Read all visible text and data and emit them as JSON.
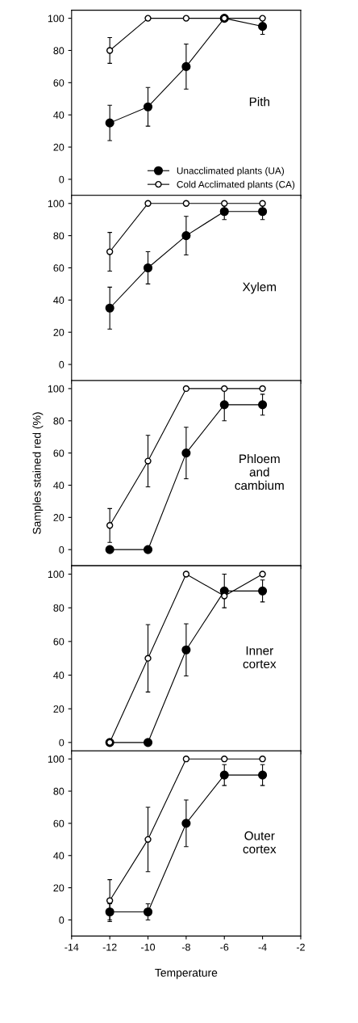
{
  "chart_data": [
    {
      "type": "line",
      "x": [
        -12,
        -10,
        -8,
        -6,
        -4
      ],
      "xlim": [
        -14,
        -2
      ],
      "xticks": [
        -14,
        -12,
        -10,
        -8,
        -6,
        -4,
        -2
      ],
      "ylim": [
        -10,
        105
      ],
      "yticks": [
        0,
        20,
        40,
        60,
        80,
        100
      ],
      "tick_labels": "y",
      "marker": "circle",
      "legend": "bottom right",
      "annotations": [
        "Pith"
      ],
      "series": [
        {
          "name": "Unacclimated plants (UA)",
          "color": "#000000",
          "values": [
            35,
            45,
            70,
            100,
            95
          ],
          "errors": [
            11,
            12,
            14,
            null,
            5
          ]
        },
        {
          "name": "Cold Acclimated plants (CA)",
          "color": "#ffffff",
          "values": [
            80,
            100,
            100,
            100,
            100
          ],
          "errors": [
            8,
            null,
            null,
            null,
            null
          ]
        }
      ]
    },
    {
      "type": "line",
      "x": [
        -12,
        -10,
        -8,
        -6,
        -4
      ],
      "xlim": [
        -14,
        -2
      ],
      "xticks": [
        -14,
        -12,
        -10,
        -8,
        -6,
        -4,
        -2
      ],
      "ylim": [
        -10,
        105
      ],
      "yticks": [
        0,
        20,
        40,
        60,
        80,
        100
      ],
      "tick_labels": "y",
      "marker": "circle",
      "annotations": [
        "Xylem"
      ],
      "series": [
        {
          "color": "#000000",
          "values": [
            35,
            60,
            80,
            95,
            95
          ],
          "errors": [
            13,
            10,
            12,
            5,
            5
          ]
        },
        {
          "color": "#ffffff",
          "values": [
            70,
            100,
            100,
            100,
            100
          ],
          "errors": [
            12,
            null,
            null,
            null,
            null
          ]
        }
      ]
    },
    {
      "type": "line",
      "x": [
        -12,
        -10,
        -8,
        -6,
        -4
      ],
      "xlim": [
        -14,
        -2
      ],
      "xticks": [
        -14,
        -12,
        -10,
        -8,
        -6,
        -4,
        -2
      ],
      "ylim": [
        -10,
        105
      ],
      "yticks": [
        0,
        20,
        40,
        60,
        80,
        100
      ],
      "tick_labels": "y",
      "marker": "circle",
      "ylabel": "Samples stained red (%)",
      "annotations": [
        "Phloem\nand\ncambium"
      ],
      "series": [
        {
          "color": "#000000",
          "values": [
            0,
            0,
            60,
            90,
            90
          ],
          "errors": [
            null,
            null,
            16,
            10,
            6.5
          ]
        },
        {
          "color": "#ffffff",
          "values": [
            15,
            55,
            100,
            100,
            100
          ],
          "errors": [
            10.5,
            16,
            null,
            null,
            null
          ]
        }
      ]
    },
    {
      "type": "line",
      "x": [
        -12,
        -10,
        -8,
        -6,
        -4
      ],
      "xlim": [
        -14,
        -2
      ],
      "xticks": [
        -14,
        -12,
        -10,
        -8,
        -6,
        -4,
        -2
      ],
      "ylim": [
        -5,
        105
      ],
      "yticks": [
        0,
        20,
        40,
        60,
        80,
        100
      ],
      "tick_labels": "y",
      "marker": "circle",
      "annotations": [
        "Inner\ncortex"
      ],
      "series": [
        {
          "color": "#000000",
          "values": [
            0,
            0,
            55,
            90,
            90
          ],
          "errors": [
            null,
            null,
            15.5,
            10,
            6.5
          ]
        },
        {
          "color": "#ffffff",
          "values": [
            0,
            50,
            100,
            87,
            100
          ],
          "errors": [
            null,
            20,
            null,
            null,
            null
          ]
        }
      ]
    },
    {
      "type": "line",
      "x": [
        -12,
        -10,
        -8,
        -6,
        -4
      ],
      "xlim": [
        -14,
        -2
      ],
      "xticks": [
        -14,
        -12,
        -10,
        -8,
        -6,
        -4,
        -2
      ],
      "ylim": [
        -10,
        105
      ],
      "yticks": [
        0,
        20,
        40,
        60,
        80,
        100
      ],
      "marker": "circle",
      "xlabel": "Temperature",
      "annotations": [
        "Outer\ncortex"
      ],
      "series": [
        {
          "color": "#000000",
          "values": [
            5,
            5,
            60,
            90,
            90
          ],
          "errors": [
            5,
            5,
            14.5,
            6.5,
            6.5
          ]
        },
        {
          "color": "#ffffff",
          "values": [
            12,
            50,
            100,
            100,
            100
          ],
          "errors": [
            13,
            20,
            null,
            null,
            null
          ]
        }
      ]
    }
  ]
}
